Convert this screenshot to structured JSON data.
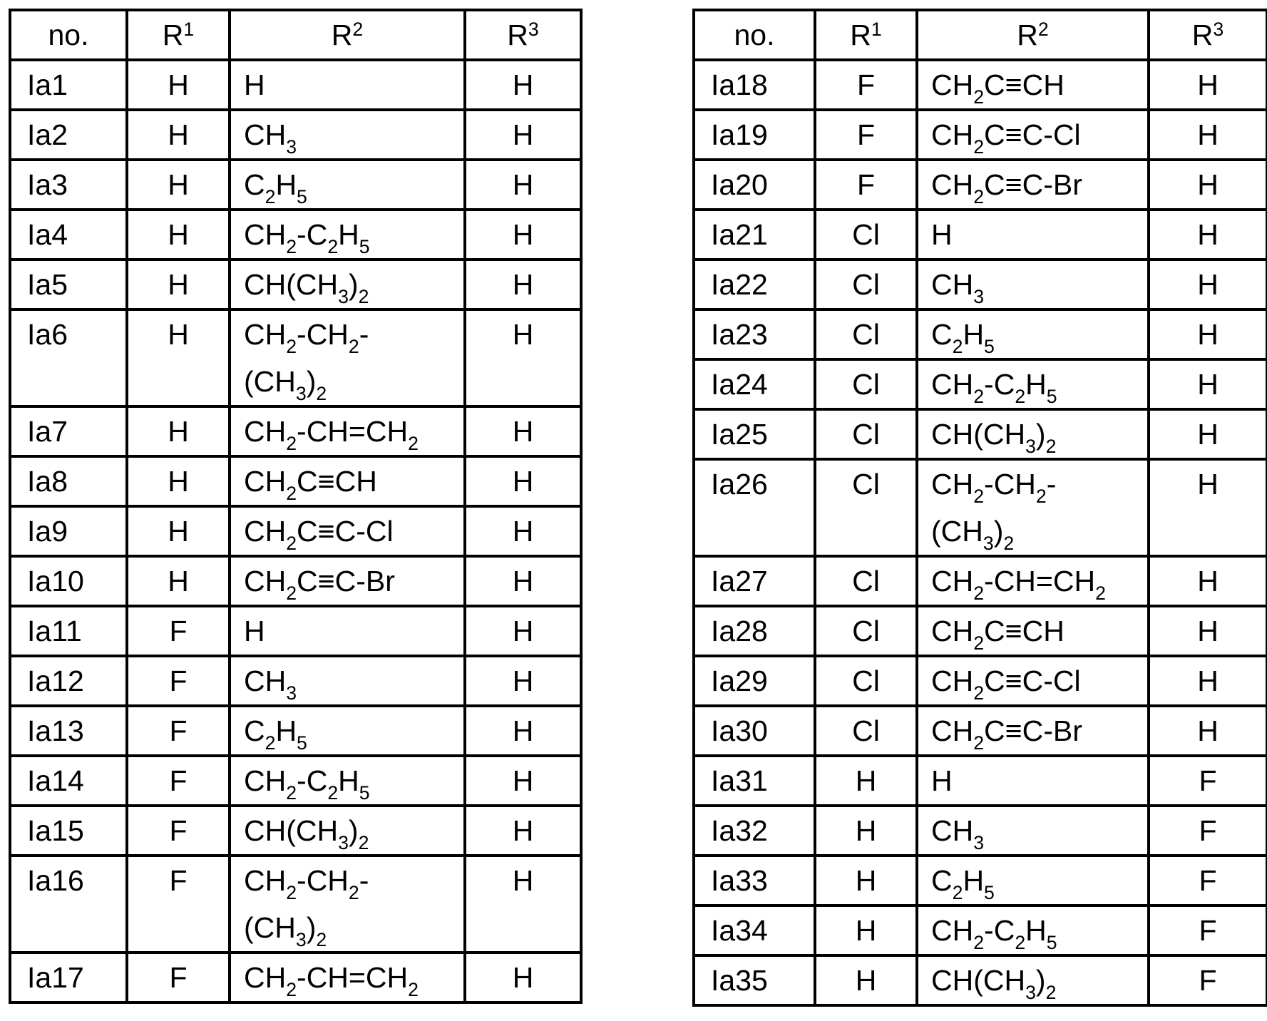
{
  "colors": {
    "background": "#ffffff",
    "text": "#000000",
    "border": "#000000"
  },
  "tables": [
    {
      "id": "left",
      "headers": [
        "no.",
        "R¹",
        "R²",
        "R³"
      ],
      "rows": [
        {
          "no": "Ia1",
          "r1": "H",
          "r2": "H",
          "r3": "H"
        },
        {
          "no": "Ia2",
          "r1": "H",
          "r2": "CH₃",
          "r3": "H"
        },
        {
          "no": "Ia3",
          "r1": "H",
          "r2": "C₂H₅",
          "r3": "H"
        },
        {
          "no": "Ia4",
          "r1": "H",
          "r2": "CH₂-C₂H₅",
          "r3": "H"
        },
        {
          "no": "Ia5",
          "r1": "H",
          "r2": "CH(CH₃)₂",
          "r3": "H"
        },
        {
          "no": "Ia6",
          "r1": "H",
          "r2": "CH₂-CH₂-\n(CH₃)₂",
          "r3": "H"
        },
        {
          "no": "Ia7",
          "r1": "H",
          "r2": "CH₂-CH=CH₂",
          "r3": "H"
        },
        {
          "no": "Ia8",
          "r1": "H",
          "r2": "CH₂C≡CH",
          "r3": "H"
        },
        {
          "no": "Ia9",
          "r1": "H",
          "r2": "CH₂C≡C-Cl",
          "r3": "H"
        },
        {
          "no": "Ia10",
          "r1": "H",
          "r2": "CH₂C≡C-Br",
          "r3": "H"
        },
        {
          "no": "Ia11",
          "r1": "F",
          "r2": "H",
          "r3": "H"
        },
        {
          "no": "Ia12",
          "r1": "F",
          "r2": "CH₃",
          "r3": "H"
        },
        {
          "no": "Ia13",
          "r1": "F",
          "r2": "C₂H₅",
          "r3": "H"
        },
        {
          "no": "Ia14",
          "r1": "F",
          "r2": "CH₂-C₂H₅",
          "r3": "H"
        },
        {
          "no": "Ia15",
          "r1": "F",
          "r2": "CH(CH₃)₂",
          "r3": "H"
        },
        {
          "no": "Ia16",
          "r1": "F",
          "r2": "CH₂-CH₂-\n(CH₃)₂",
          "r3": "H"
        },
        {
          "no": "Ia17",
          "r1": "F",
          "r2": "CH₂-CH=CH₂",
          "r3": "H"
        }
      ]
    },
    {
      "id": "right",
      "headers": [
        "no.",
        "R¹",
        "R²",
        "R³"
      ],
      "rows": [
        {
          "no": "Ia18",
          "r1": "F",
          "r2": "CH₂C≡CH",
          "r3": "H"
        },
        {
          "no": "Ia19",
          "r1": "F",
          "r2": "CH₂C≡C-Cl",
          "r3": "H"
        },
        {
          "no": "Ia20",
          "r1": "F",
          "r2": "CH₂C≡C-Br",
          "r3": "H"
        },
        {
          "no": "Ia21",
          "r1": "Cl",
          "r2": "H",
          "r3": "H"
        },
        {
          "no": "Ia22",
          "r1": "Cl",
          "r2": "CH₃",
          "r3": "H"
        },
        {
          "no": "Ia23",
          "r1": "Cl",
          "r2": "C₂H₅",
          "r3": "H"
        },
        {
          "no": "Ia24",
          "r1": "Cl",
          "r2": "CH₂-C₂H₅",
          "r3": "H"
        },
        {
          "no": "Ia25",
          "r1": "Cl",
          "r2": "CH(CH₃)₂",
          "r3": "H"
        },
        {
          "no": "Ia26",
          "r1": "Cl",
          "r2": "CH₂-CH₂-\n(CH₃)₂",
          "r3": "H"
        },
        {
          "no": "Ia27",
          "r1": "Cl",
          "r2": "CH₂-CH=CH₂",
          "r3": "H"
        },
        {
          "no": "Ia28",
          "r1": "Cl",
          "r2": "CH₂C≡CH",
          "r3": "H"
        },
        {
          "no": "Ia29",
          "r1": "Cl",
          "r2": "CH₂C≡C-Cl",
          "r3": "H"
        },
        {
          "no": "Ia30",
          "r1": "Cl",
          "r2": "CH₂C≡C-Br",
          "r3": "H"
        },
        {
          "no": "Ia31",
          "r1": "H",
          "r2": "H",
          "r3": "F"
        },
        {
          "no": "Ia32",
          "r1": "H",
          "r2": "CH₃",
          "r3": "F"
        },
        {
          "no": "Ia33",
          "r1": "H",
          "r2": "C₂H₅",
          "r3": "F"
        },
        {
          "no": "Ia34",
          "r1": "H",
          "r2": "CH₂-C₂H₅",
          "r3": "F"
        },
        {
          "no": "Ia35",
          "r1": "H",
          "r2": "CH(CH₃)₂",
          "r3": "F"
        }
      ]
    }
  ]
}
